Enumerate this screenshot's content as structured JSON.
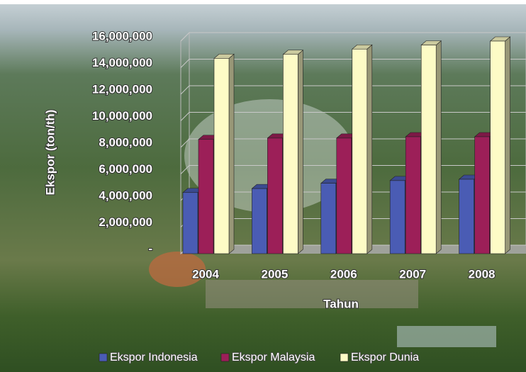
{
  "chart_data": {
    "type": "bar3d",
    "y_label": "Ekspor (ton/th)",
    "x_label": "Tahun",
    "categories": [
      "2004",
      "2005",
      "2006",
      "2007",
      "2008"
    ],
    "series": [
      {
        "name": "Ekspor Indonesia",
        "color": "#4a5cb4",
        "values": [
          4600000,
          4900000,
          5300000,
          5500000,
          5600000
        ]
      },
      {
        "name": "Ekspor Malaysia",
        "color": "#9c1f58",
        "values": [
          8600000,
          8700000,
          8700000,
          8800000,
          8800000
        ]
      },
      {
        "name": "Ekspor Dunia",
        "color": "#fdfbc6",
        "values": [
          14700000,
          15000000,
          15400000,
          15700000,
          16000000
        ]
      }
    ],
    "ylim": [
      0,
      16000000
    ],
    "yticks": [
      {
        "value": 0,
        "label": "-"
      },
      {
        "value": 2000000,
        "label": "2,000,000"
      },
      {
        "value": 4000000,
        "label": "4,000,000"
      },
      {
        "value": 6000000,
        "label": "6,000,000"
      },
      {
        "value": 8000000,
        "label": "8,000,000"
      },
      {
        "value": 10000000,
        "label": "10,000,000"
      },
      {
        "value": 12000000,
        "label": "12,000,000"
      },
      {
        "value": 14000000,
        "label": "14,000,000"
      },
      {
        "value": 16000000,
        "label": "16,000,000"
      }
    ],
    "grid": true
  }
}
